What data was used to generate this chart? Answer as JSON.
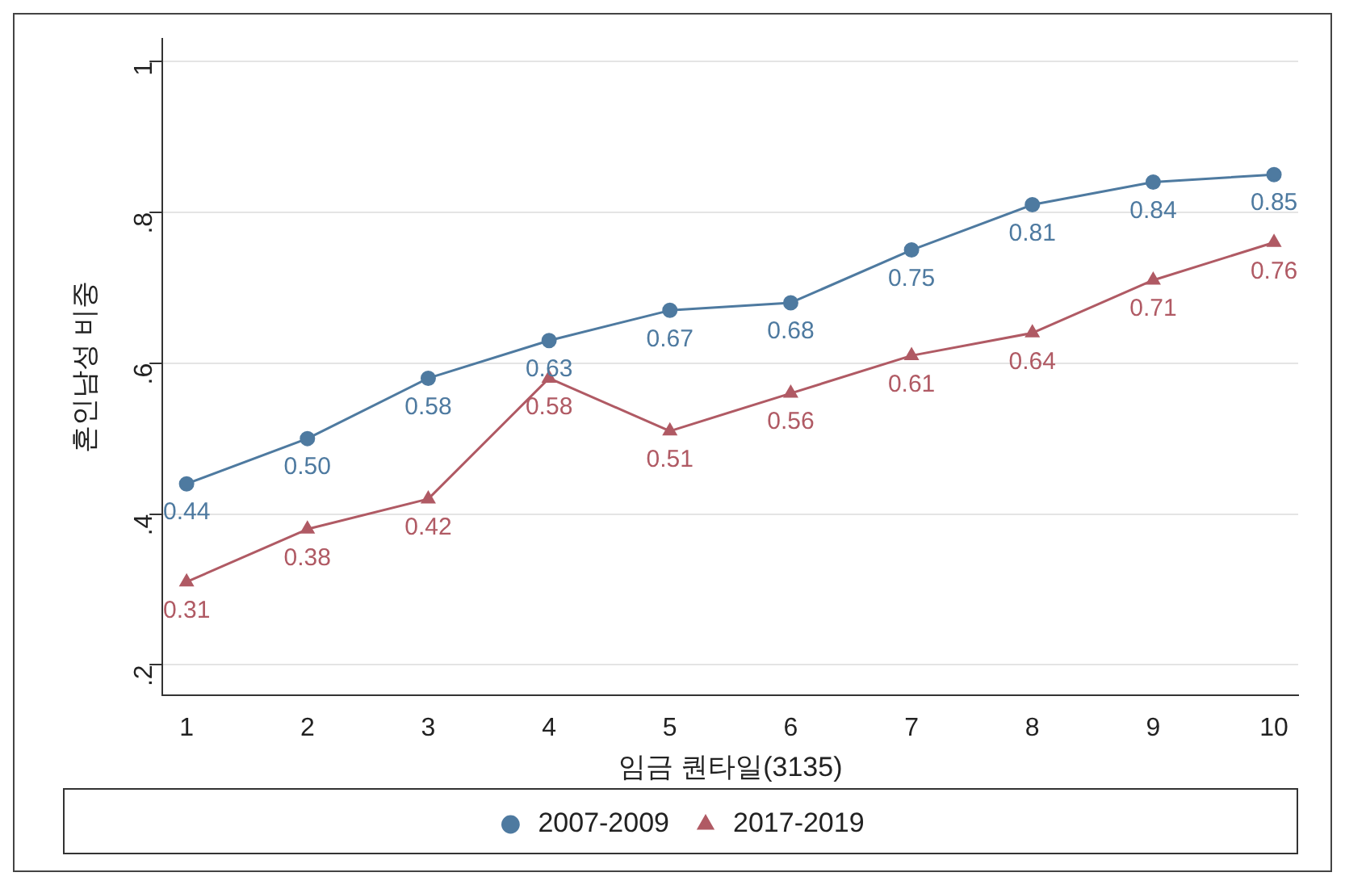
{
  "chart_data": {
    "type": "line",
    "xlabel": "임금 퀀타일(3135)",
    "ylabel": "혼인남성 비중",
    "x": [
      1,
      2,
      3,
      4,
      5,
      6,
      7,
      8,
      9,
      10
    ],
    "series": [
      {
        "name": "2007-2009",
        "color": "#4e7aa0",
        "marker": "circle",
        "values": [
          0.44,
          0.5,
          0.58,
          0.63,
          0.67,
          0.68,
          0.75,
          0.81,
          0.84,
          0.85
        ],
        "value_labels": [
          "0.44",
          "0.50",
          "0.58",
          "0.63",
          "0.67",
          "0.68",
          "0.75",
          "0.81",
          "0.84",
          "0.85"
        ]
      },
      {
        "name": "2017-2019",
        "color": "#b05a64",
        "marker": "triangle",
        "values": [
          0.31,
          0.38,
          0.42,
          0.58,
          0.51,
          0.56,
          0.61,
          0.64,
          0.71,
          0.76
        ],
        "value_labels": [
          "0.31",
          "0.38",
          "0.42",
          "0.58",
          "0.51",
          "0.56",
          "0.61",
          "0.64",
          "0.71",
          "0.76"
        ]
      }
    ],
    "xlim": [
      0.8,
      10.2
    ],
    "xticks": [
      1,
      2,
      3,
      4,
      5,
      6,
      7,
      8,
      9,
      10
    ],
    "ylim": [
      0.16,
      1.03
    ],
    "yticks": [
      {
        "value": 0.2,
        "label": ".2"
      },
      {
        "value": 0.4,
        "label": ".4"
      },
      {
        "value": 0.6,
        "label": ".6"
      },
      {
        "value": 0.8,
        "label": ".8"
      },
      1
    ],
    "grid": "y",
    "legend": "bottom",
    "line_style": "solid"
  }
}
